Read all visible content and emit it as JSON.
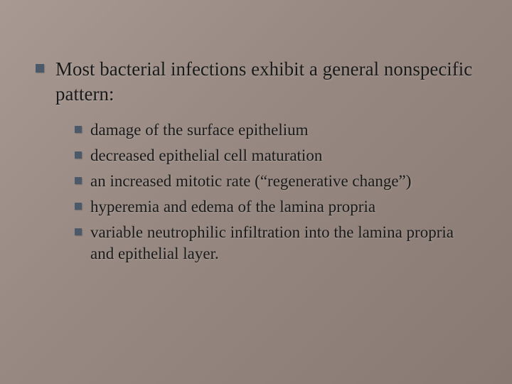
{
  "slide": {
    "background_gradient": [
      "#a89a92",
      "#988a82",
      "#887a72"
    ],
    "bullet_color": "#4a5a6a",
    "text_color": "#1a1a1a",
    "main_fontsize": 27,
    "sub_fontsize": 23,
    "main_text": "Most bacterial infections exhibit a general nonspecific pattern:",
    "sub_items": [
      "damage of the surface epithelium",
      "decreased epithelial cell maturation",
      "an increased mitotic rate (“regenerative change”)",
      "hyperemia and edema of the lamina propria",
      "variable neutrophilic infiltration into the lamina propria and epithelial layer."
    ]
  }
}
